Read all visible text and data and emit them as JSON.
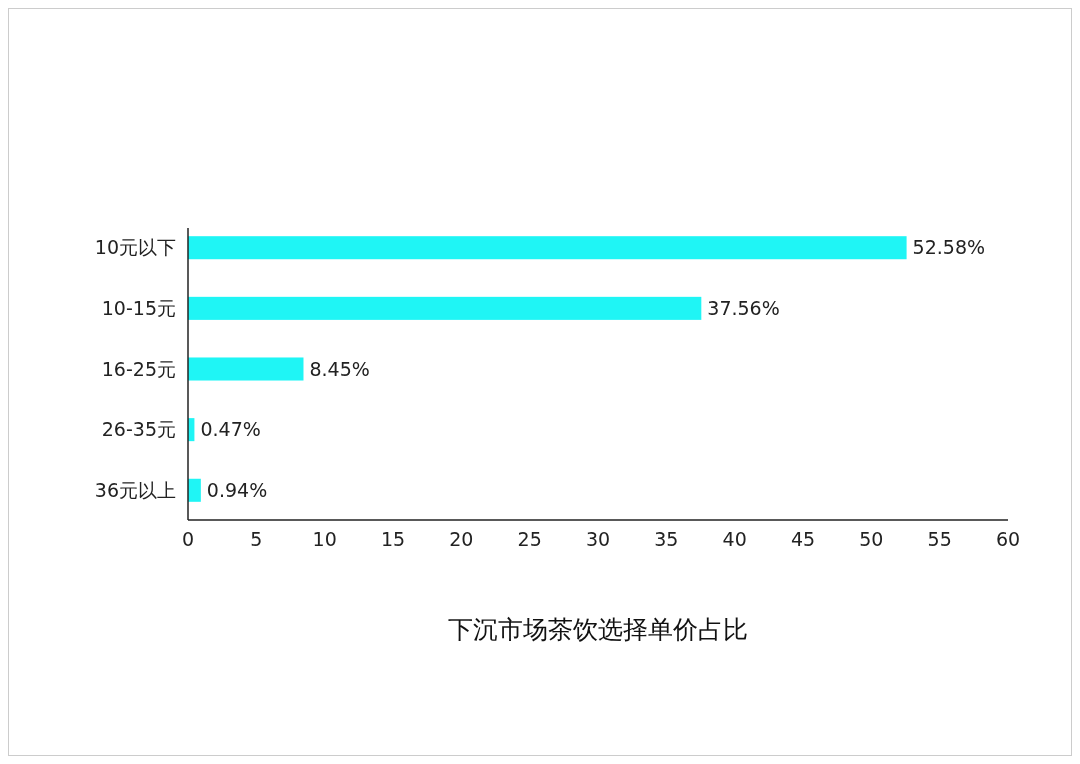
{
  "chart_data": {
    "type": "bar",
    "orientation": "horizontal",
    "title": "下沉市场茶饮选择单价占比",
    "categories": [
      "10元以下",
      "10-15元",
      "16-25元",
      "26-35元",
      "36元以上"
    ],
    "values": [
      52.58,
      37.56,
      8.45,
      0.47,
      0.94
    ],
    "value_labels": [
      "52.58%",
      "37.56%",
      "8.45%",
      "0.47%",
      "0.94%"
    ],
    "color": "#1ff5f5",
    "xlim": [
      0,
      60
    ],
    "xticks": [
      0,
      5,
      10,
      15,
      20,
      25,
      30,
      35,
      40,
      45,
      50,
      55,
      60
    ],
    "grid": false
  }
}
